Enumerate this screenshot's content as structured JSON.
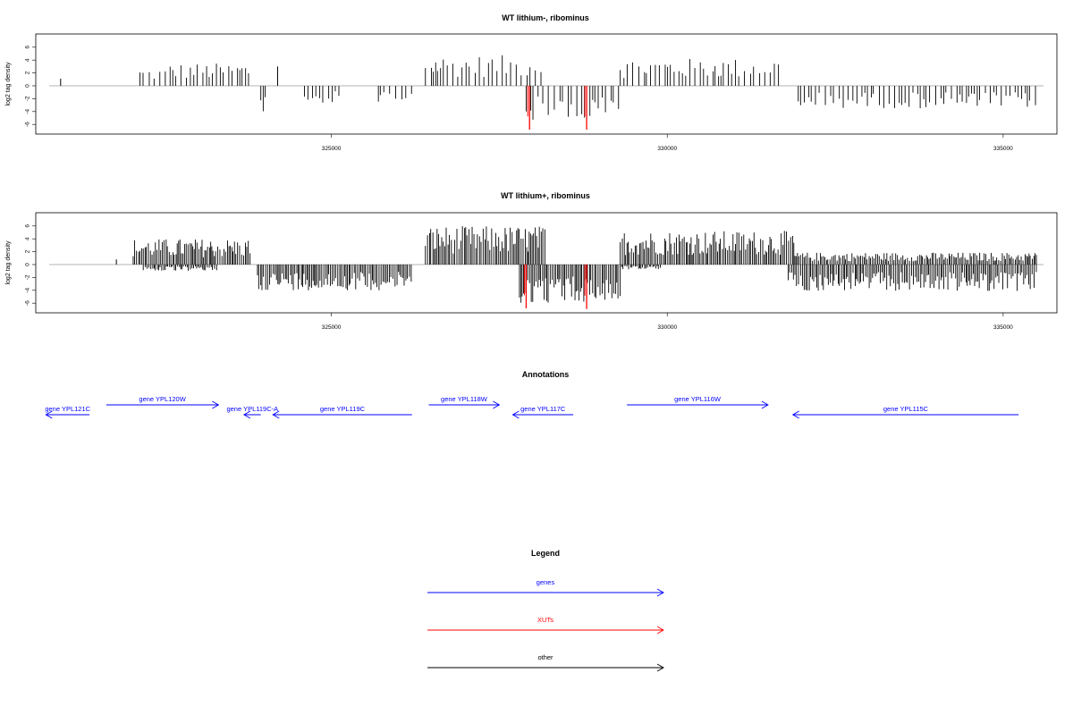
{
  "colors": {
    "genes": "#0000ff",
    "xuts": "#ff0000",
    "other": "#000000",
    "positive": "#000000",
    "negative": "#000000"
  },
  "chart_data": [
    {
      "type": "bar",
      "title": "WT lithium-, ribominus",
      "ylabel": "log2 tag density",
      "xlim": [
        320600,
        335800
      ],
      "ylim": [
        -7.5,
        7.5
      ],
      "xticks": [
        "325000",
        "330000",
        "335000"
      ],
      "yticks": [
        "6",
        "4",
        "2",
        "0",
        "-2",
        "-4",
        "-6"
      ],
      "baseline": [
        320800,
        335600
      ],
      "positive_regions": [
        {
          "x": [
            320970
          ],
          "y": 1.1
        },
        {
          "x": [
            322150,
            322550
          ],
          "y": 2.2
        },
        {
          "x": [
            322600,
            323800
          ],
          "y": 2.8
        },
        {
          "x": [
            324200
          ],
          "y": 3.0
        },
        {
          "x": [
            326400,
            328200
          ],
          "y": 3.8
        },
        {
          "x": [
            329300,
            331700
          ],
          "y": 3.4
        }
      ],
      "negative_regions": [
        {
          "x": [
            323950,
            324050
          ],
          "y": -3.8
        },
        {
          "x": [
            324600,
            325200
          ],
          "y": -2.2
        },
        {
          "x": [
            325700,
            326200
          ],
          "y": -2.0
        },
        {
          "x": [
            327900,
            329300
          ],
          "y": -4.5
        },
        {
          "x": [
            331950,
            335500
          ],
          "y": -2.8
        }
      ],
      "xut_peaks": [
        {
          "x": 327950,
          "y": -6.8
        },
        {
          "x": 328800,
          "y": -6.8
        }
      ],
      "density": 0.5
    },
    {
      "type": "bar",
      "title": "WT lithium+, ribominus",
      "ylabel": "log2 tag density",
      "xlim": [
        320600,
        335800
      ],
      "ylim": [
        -7.5,
        7.5
      ],
      "xticks": [
        "325000",
        "330000",
        "335000"
      ],
      "yticks": [
        "6",
        "4",
        "2",
        "0",
        "-2",
        "-4",
        "-6"
      ],
      "baseline": [
        320800,
        335600
      ],
      "positive_regions": [
        {
          "x": [
            321800
          ],
          "y": 0.8
        },
        {
          "x": [
            322050,
            323800
          ],
          "y": 3.2
        },
        {
          "x": [
            326400,
            328200
          ],
          "y": 4.8
        },
        {
          "x": [
            329300,
            331900
          ],
          "y": 4.2
        },
        {
          "x": [
            331900,
            335500
          ],
          "y": 1.5
        }
      ],
      "negative_regions": [
        {
          "x": [
            322200,
            323300
          ],
          "y": -0.8
        },
        {
          "x": [
            323900,
            326200
          ],
          "y": -3.2
        },
        {
          "x": [
            327800,
            329300
          ],
          "y": -4.8
        },
        {
          "x": [
            329300,
            329900
          ],
          "y": -0.6
        },
        {
          "x": [
            331800,
            335500
          ],
          "y": -3.3
        }
      ],
      "xut_peaks": [
        {
          "x": 327900,
          "y": -6.8
        },
        {
          "x": 328800,
          "y": -6.9
        }
      ],
      "density": 0.9
    }
  ],
  "annotations": {
    "title": "Annotations",
    "genes": [
      {
        "label": "gene YPL121C",
        "start": 320750,
        "end": 321400,
        "strand": "-",
        "row": 1
      },
      {
        "label": "gene YPL120W",
        "start": 321650,
        "end": 323320,
        "strand": "+",
        "row": 0
      },
      {
        "label": "gene YPL119C-A",
        "start": 323700,
        "end": 323950,
        "strand": "-",
        "row": 1
      },
      {
        "label": "gene YPL119C",
        "start": 324130,
        "end": 326200,
        "strand": "-",
        "row": 1
      },
      {
        "label": "gene YPL118W",
        "start": 326450,
        "end": 327500,
        "strand": "+",
        "row": 0
      },
      {
        "label": "gene YPL117C",
        "start": 327700,
        "end": 328600,
        "strand": "-",
        "row": 1
      },
      {
        "label": "gene YPL116W",
        "start": 329400,
        "end": 331500,
        "strand": "+",
        "row": 0
      },
      {
        "label": "gene YPL115C",
        "start": 331870,
        "end": 335230,
        "strand": "-",
        "row": 1
      }
    ]
  },
  "legend": {
    "title": "Legend",
    "items": [
      {
        "label": "genes",
        "color": "#0000ff"
      },
      {
        "label": "XUTs",
        "color": "#ff0000"
      },
      {
        "label": "other",
        "color": "#000000"
      }
    ]
  }
}
